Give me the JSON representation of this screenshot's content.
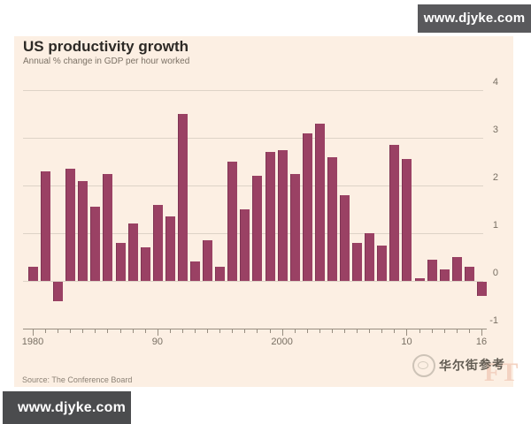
{
  "banners": {
    "top_right": "www.djyke.com",
    "bottom_left": "www.djyke.com"
  },
  "chart": {
    "title": "US productivity growth",
    "subtitle": "Annual % change in GDP per hour worked",
    "source": "Source: The Conference Board"
  },
  "watermark": {
    "logo": "wallstreet-circle-logo",
    "text": "华尔街参考",
    "ft": "FT"
  },
  "colors": {
    "bar": "#9a4164",
    "panel_background": "#fcefe3",
    "gridline": "#ddd3c7",
    "axis": "#978d80",
    "banner_background": "#515154",
    "banner_text": "#ffffff"
  },
  "chart_data": {
    "type": "bar",
    "title": "US productivity growth",
    "subtitle": "Annual % change in GDP per hour worked",
    "source": "Source: The Conference Board",
    "xlabel": "",
    "ylabel": "Annual % change in GDP per hour worked",
    "ylim": [
      -1,
      4
    ],
    "yticks": [
      "4",
      "3",
      "2",
      "1",
      "0",
      "-1"
    ],
    "ytick_values": [
      4,
      3,
      2,
      1,
      0,
      -1
    ],
    "grid": true,
    "legend": "none",
    "categories": [
      1980,
      1981,
      1982,
      1983,
      1984,
      1985,
      1986,
      1987,
      1988,
      1989,
      1990,
      1991,
      1992,
      1993,
      1994,
      1995,
      1996,
      1997,
      1998,
      1999,
      2000,
      2001,
      2002,
      2003,
      2004,
      2005,
      2006,
      2007,
      2008,
      2009,
      2010,
      2011,
      2012,
      2013,
      2014,
      2015,
      2016
    ],
    "values": [
      0.3,
      2.3,
      -0.4,
      2.35,
      2.1,
      1.55,
      2.25,
      0.8,
      1.2,
      0.7,
      1.6,
      1.35,
      3.5,
      0.4,
      0.85,
      0.3,
      2.5,
      1.5,
      2.2,
      2.7,
      2.75,
      2.25,
      3.1,
      3.3,
      2.6,
      1.8,
      0.8,
      1.0,
      0.75,
      2.85,
      2.55,
      0.05,
      0.45,
      0.25,
      0.5,
      0.3,
      -0.3
    ],
    "xtick_labels": [
      {
        "year": 1980,
        "label": "1980"
      },
      {
        "year": 1990,
        "label": "90"
      },
      {
        "year": 2000,
        "label": "2000"
      },
      {
        "year": 2010,
        "label": "10"
      },
      {
        "year": 2016,
        "label": "16"
      }
    ]
  }
}
